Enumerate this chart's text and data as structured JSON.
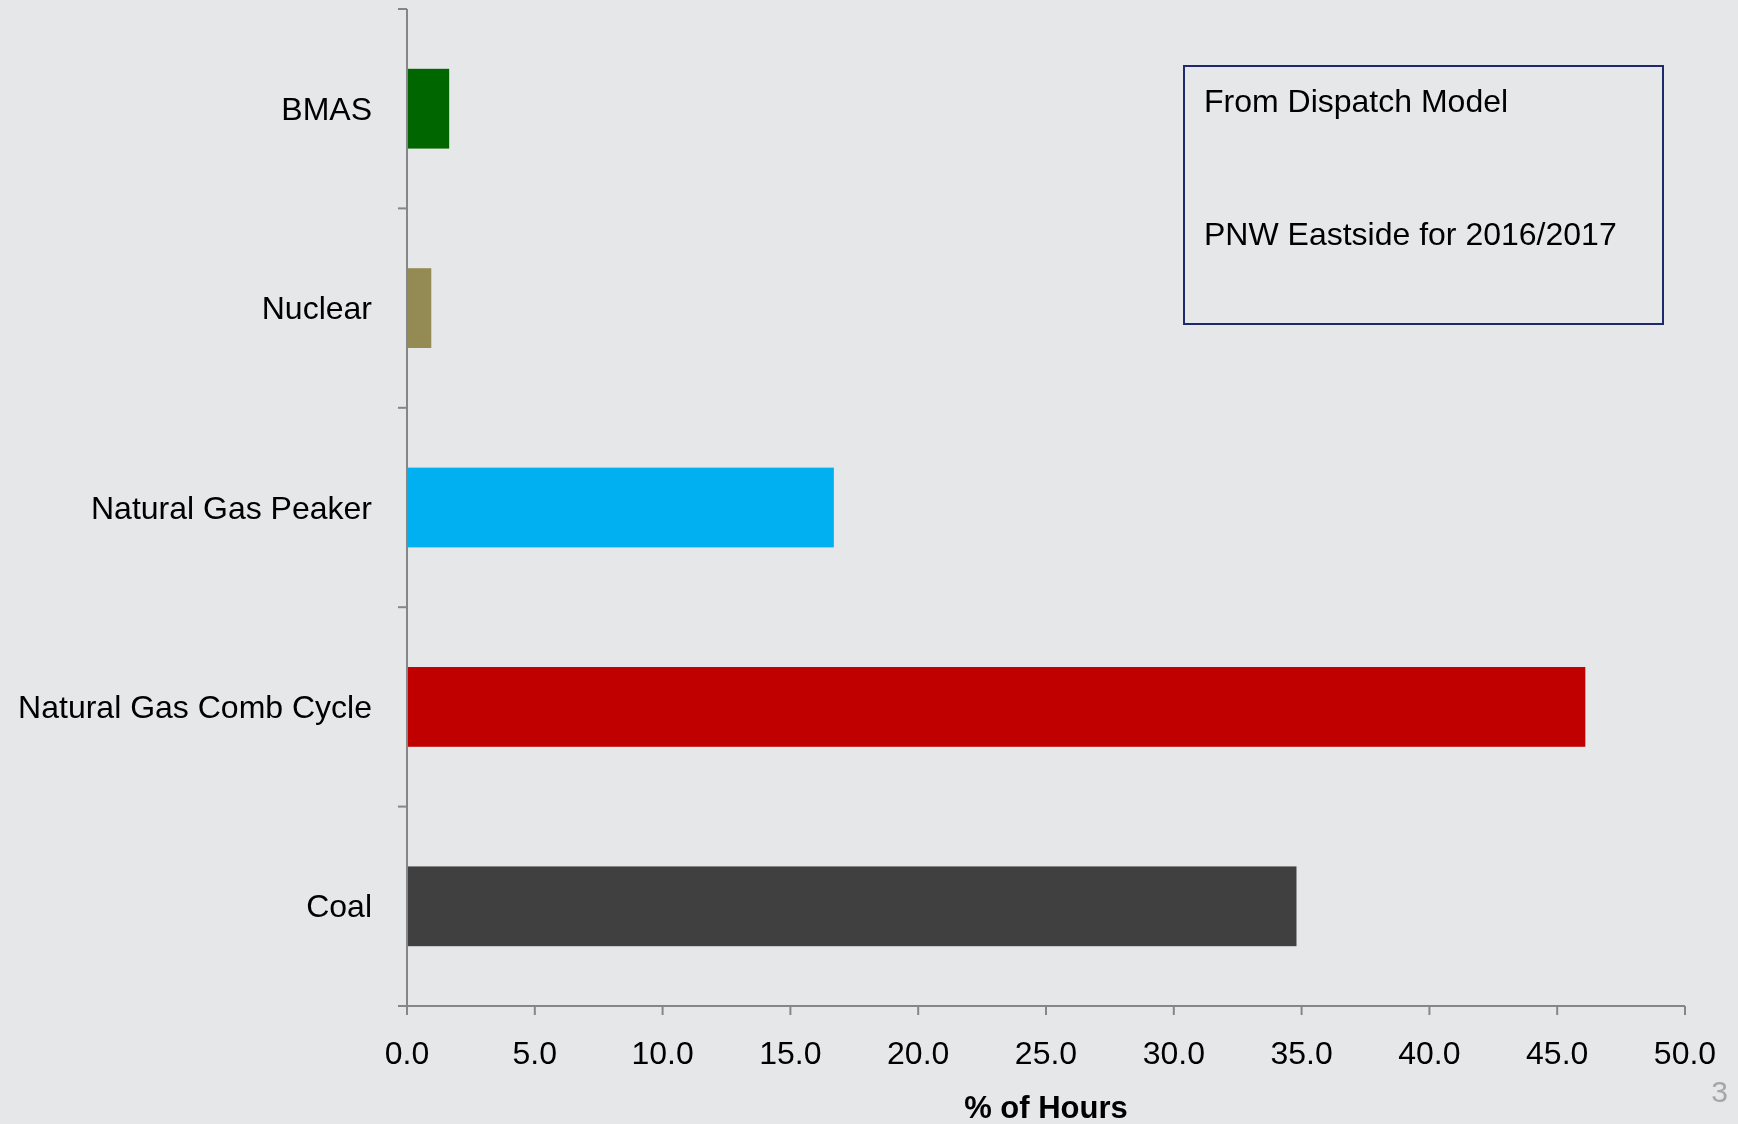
{
  "chart_data": {
    "type": "bar",
    "orientation": "horizontal",
    "categories": [
      "BMAS",
      "Nuclear",
      "Natural Gas Peaker",
      "Natural Gas Comb Cycle",
      "Coal"
    ],
    "values": [
      1.65,
      0.95,
      16.7,
      46.1,
      34.8
    ],
    "colors": [
      "#006600",
      "#948a54",
      "#00b0f0",
      "#c00000",
      "#404040"
    ],
    "xlabel": "% of Hours",
    "xlim": [
      0,
      50
    ],
    "xticks": [
      {
        "value": 0,
        "label": "0.0"
      },
      {
        "value": 5,
        "label": "5.0"
      },
      {
        "value": 10,
        "label": "10.0"
      },
      {
        "value": 15,
        "label": "15.0"
      },
      {
        "value": 20,
        "label": "20.0"
      },
      {
        "value": 25,
        "label": "25.0"
      },
      {
        "value": 30,
        "label": "30.0"
      },
      {
        "value": 35,
        "label": "35.0"
      },
      {
        "value": 40,
        "label": "40.0"
      },
      {
        "value": 45,
        "label": "45.0"
      },
      {
        "value": 50,
        "label": "50.0"
      }
    ],
    "annotations": [
      "From Dispatch Model",
      "PNW Eastside for 2016/2017",
      "3"
    ],
    "grid": false
  }
}
